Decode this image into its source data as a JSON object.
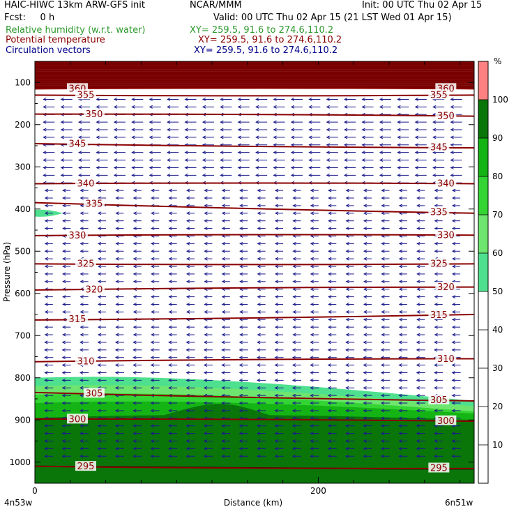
{
  "header": {
    "line1_left": "HAIC-HIWC 13km ARW-GFS init",
    "line1_mid": "NCAR/MMM",
    "line1_right": "Init: 00 UTC Thu 02 Apr 15",
    "line2_left": "Fcst:     0 h",
    "line2_right": "Valid: 00 UTC Thu 02 Apr 15 (21 LST Wed 01 Apr 15)",
    "fields": [
      {
        "name": "Relative humidity (w.r.t. water)",
        "xy": "XY= 259.5, 91.6 to 274.6,110.2",
        "color": "#2e9a2e"
      },
      {
        "name": "Potential temperature",
        "xy": "XY= 259.5, 91.6 to 274.6,110.2",
        "color": "#8b0000"
      },
      {
        "name": "Circulation vectors",
        "xy": "XY= 259.5, 91.6 to 274.6,110.2",
        "color": "#00008b"
      }
    ]
  },
  "chart_data": {
    "type": "cross-section",
    "xlabel": "Distance (km)",
    "ylabel": "Pressure (hPa)",
    "x_ticks": [
      {
        "value": 0,
        "label": "0"
      },
      {
        "value": 200,
        "label": "200"
      }
    ],
    "x_minor_step": 25,
    "xlim": [
      0,
      310
    ],
    "y_ticks": [
      100,
      200,
      300,
      400,
      500,
      600,
      700,
      800,
      900,
      1000
    ],
    "ylim": [
      50,
      1050
    ],
    "left_endpoint": "4n53w",
    "right_endpoint": "6n51w",
    "colorbar": {
      "unit": "%",
      "ticks": [
        "10",
        "20",
        "30",
        "40",
        "50",
        "60",
        "70",
        "80",
        "90",
        "100"
      ],
      "levels": [
        {
          "from": 0,
          "to": 50,
          "color": "#ffffff"
        },
        {
          "from": 50,
          "to": 60,
          "color": "#4ee08e"
        },
        {
          "from": 60,
          "to": 70,
          "color": "#6ee56e"
        },
        {
          "from": 70,
          "to": 80,
          "color": "#33d433"
        },
        {
          "from": 80,
          "to": 90,
          "color": "#14b414"
        },
        {
          "from": 90,
          "to": 100,
          "color": "#0a760a"
        },
        {
          "from": 100,
          "to": 110,
          "color": "#ff8080"
        }
      ]
    },
    "theta_contours": [
      {
        "value": 360,
        "label": "360",
        "p_start": 115,
        "p_end": 115
      },
      {
        "value": 355,
        "label": "355",
        "p_start": 130,
        "p_end": 130
      },
      {
        "value": 350,
        "label": "350",
        "p_start": 175,
        "p_end": 180
      },
      {
        "value": 345,
        "label": "345",
        "p_start": 245,
        "p_end": 255
      },
      {
        "value": 340,
        "label": "340",
        "p_start": 340,
        "p_end": 340
      },
      {
        "value": 335,
        "label": "335",
        "p_start": 385,
        "p_end": 410
      },
      {
        "value": 330,
        "label": "330",
        "p_start": 463,
        "p_end": 462
      },
      {
        "value": 325,
        "label": "325",
        "p_start": 530,
        "p_end": 530
      },
      {
        "value": 320,
        "label": "320",
        "p_start": 592,
        "p_end": 585
      },
      {
        "value": 315,
        "label": "315",
        "p_start": 663,
        "p_end": 650
      },
      {
        "value": 310,
        "label": "310",
        "p_start": 762,
        "p_end": 755
      },
      {
        "value": 305,
        "label": "305",
        "p_start": 835,
        "p_end": 855
      },
      {
        "value": 300,
        "label": "300",
        "p_start": 898,
        "p_end": 903
      },
      {
        "value": 295,
        "label": "295",
        "p_start": 1010,
        "p_end": 1015
      }
    ],
    "rh_regions": [
      {
        "level": "50-60",
        "top_left": 800,
        "top_right": 855
      },
      {
        "level": "60-70",
        "top_left": 820,
        "top_right": 868
      },
      {
        "level": "70-80",
        "top_left": 840,
        "top_right": 880
      },
      {
        "level": "80-90",
        "top_left": 860,
        "top_right": 885
      },
      {
        "level": "90-100",
        "top_left": 895,
        "top_right": 900
      }
    ],
    "moist_patch_p": 410
  }
}
